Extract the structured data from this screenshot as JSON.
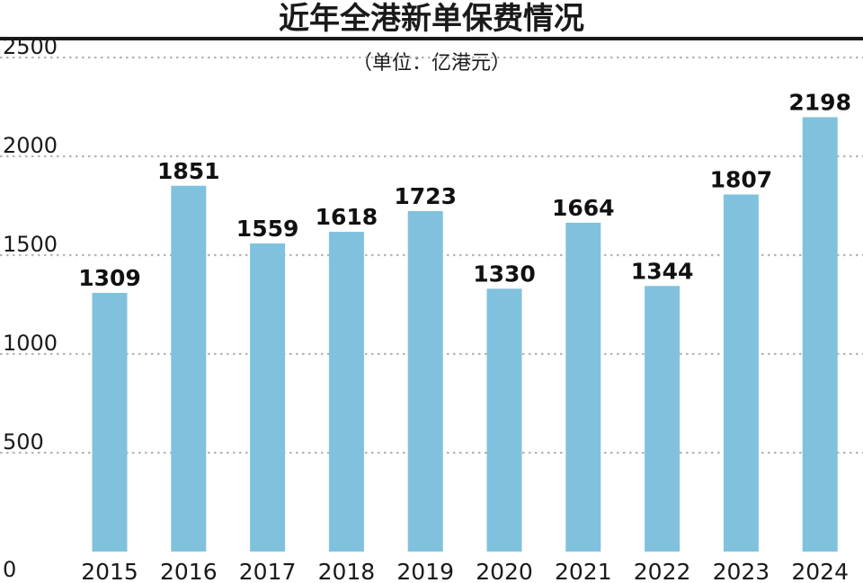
{
  "chart_data": {
    "type": "bar",
    "title": "近年全港新单保费情况",
    "subtitle": "（单位：亿港元）",
    "categories": [
      "2015",
      "2016",
      "2017",
      "2018",
      "2019",
      "2020",
      "2021",
      "2022",
      "2023",
      "2024"
    ],
    "values": [
      1309,
      1851,
      1559,
      1618,
      1723,
      1330,
      1664,
      1344,
      1807,
      2198
    ],
    "data_labels": [
      "1309",
      "1851",
      "1559",
      "1618",
      "1723",
      "1330",
      "1664",
      "1344",
      "1807",
      "2198"
    ],
    "ylim": [
      0,
      2500
    ],
    "y_ticks": [
      0,
      500,
      1000,
      1500,
      2000,
      2500
    ],
    "y_tick_labels": [
      "0",
      "500",
      "1000",
      "1500",
      "2000",
      "2500"
    ],
    "grid": true,
    "colors": {
      "bar": "#80c2dd",
      "grid": "#b5b5b5",
      "rule": "#1a1a1a",
      "text": "#1a1a1a"
    }
  }
}
